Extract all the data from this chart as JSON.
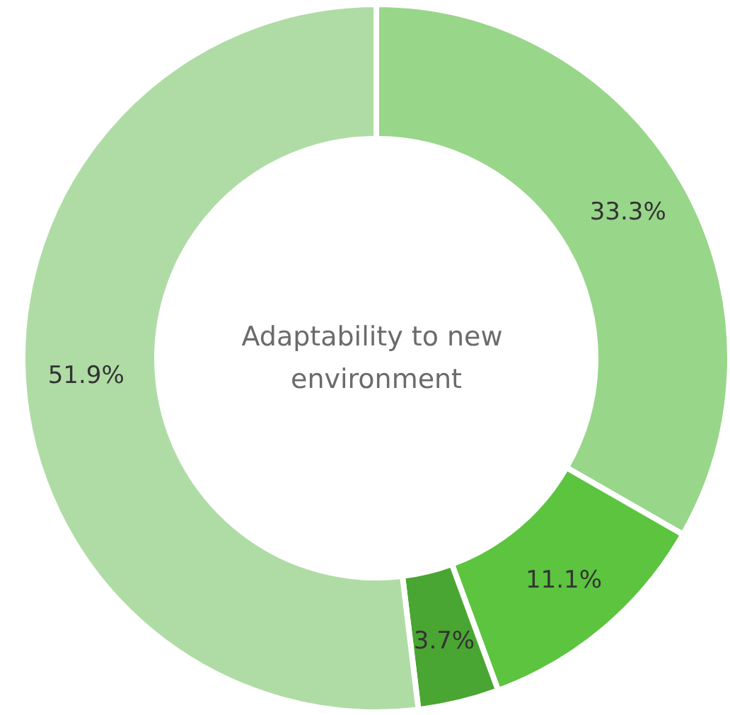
{
  "chart_data": {
    "type": "donut",
    "title": "Adaptability to new environment",
    "categories": [
      null,
      null,
      null,
      null
    ],
    "values": [
      33.3,
      11.1,
      3.7,
      51.9
    ],
    "colors": [
      "#98d68a",
      "#5cc43f",
      "#4aa632",
      "#afdca5"
    ],
    "value_labels": [
      "33.3%",
      "11.1%",
      "3.7%",
      "51.9%"
    ]
  }
}
